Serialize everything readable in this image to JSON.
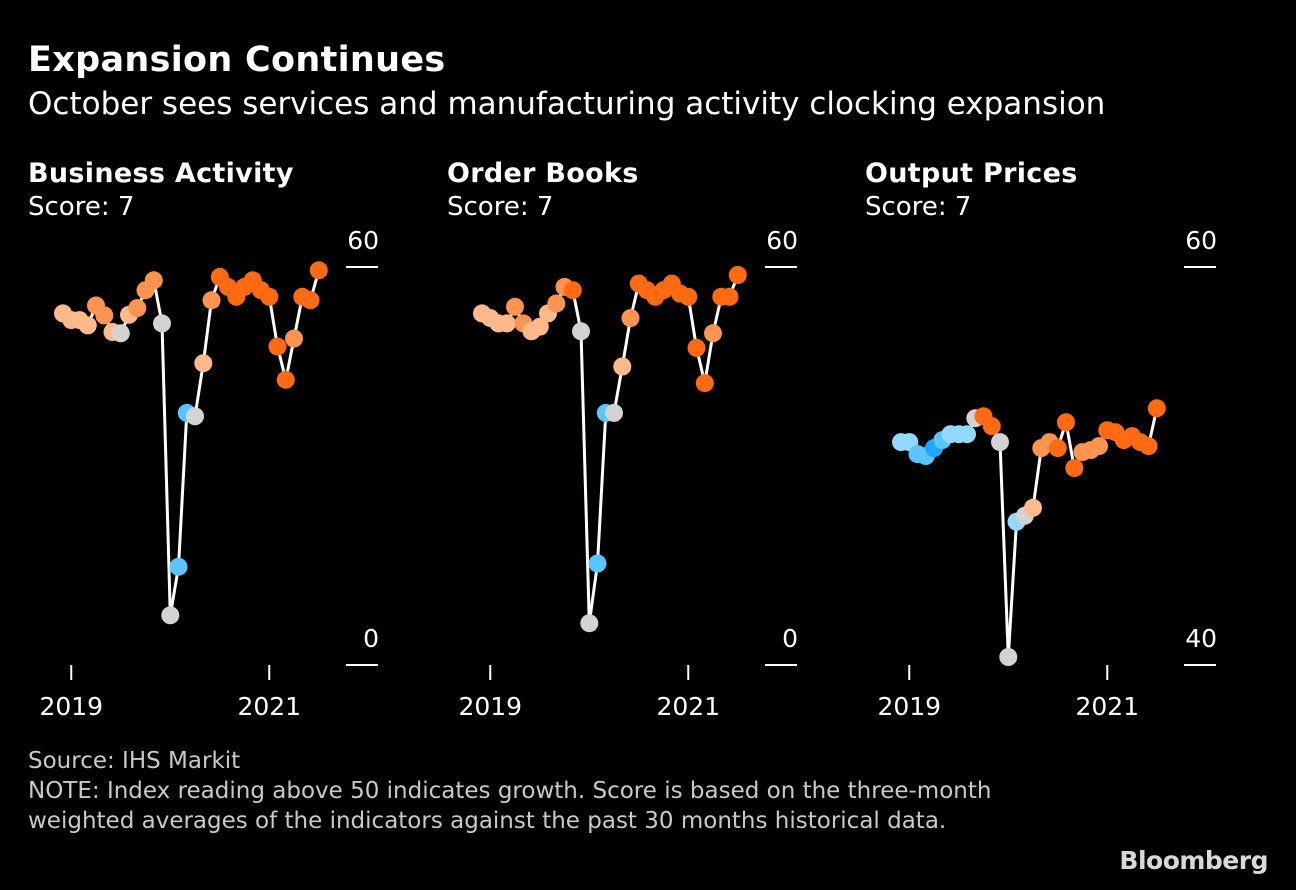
{
  "header": {
    "title": "Expansion Continues",
    "subtitle": "October sees services and manufacturing activity clocking expansion"
  },
  "footer": {
    "source": "Source: IHS Markit",
    "note": "NOTE: Index reading above 50 indicates growth. Score is based on the three-month weighted averages of the indicators against the past 30 months historical data."
  },
  "brand": "Bloomberg",
  "colors": {
    "background": "#000000",
    "line": "#ffffff",
    "neutral": "#d3d3d3",
    "orange_dark": "#ff6a13",
    "orange_mid": "#ff9350",
    "orange_light": "#ffb98a",
    "blue_dark": "#1fa6ff",
    "blue_mid": "#59c5fb",
    "blue_light": "#92dafc"
  },
  "panels": [
    {
      "title": "Business Activity",
      "score_label": "Score: 7"
    },
    {
      "title": "Order Books",
      "score_label": "Score: 7"
    },
    {
      "title": "Output Prices",
      "score_label": "Score: 7"
    }
  ],
  "chart_data": [
    {
      "type": "line",
      "title": "Business Activity",
      "subtitle": "Score: 7",
      "x_tick_labels": [
        "2019",
        "2021"
      ],
      "y_tick_labels": [
        "60",
        "0"
      ],
      "ylim": [
        0,
        60
      ],
      "xlim": [
        "2018-12",
        "2021-10"
      ],
      "grid": false,
      "legend": "none",
      "points": [
        {
          "x": "2018-12",
          "y": 53.0,
          "color": "orange_light"
        },
        {
          "x": "2019-01",
          "y": 52.0,
          "color": "orange_light"
        },
        {
          "x": "2019-02",
          "y": 52.0,
          "color": "orange_light"
        },
        {
          "x": "2019-03",
          "y": 51.2,
          "color": "orange_light"
        },
        {
          "x": "2019-04",
          "y": 54.2,
          "color": "orange_mid"
        },
        {
          "x": "2019-05",
          "y": 52.7,
          "color": "orange_mid"
        },
        {
          "x": "2019-06",
          "y": 50.2,
          "color": "orange_light"
        },
        {
          "x": "2019-07",
          "y": 50.0,
          "color": "neutral"
        },
        {
          "x": "2019-08",
          "y": 52.8,
          "color": "orange_light"
        },
        {
          "x": "2019-09",
          "y": 53.8,
          "color": "orange_mid"
        },
        {
          "x": "2019-10",
          "y": 56.5,
          "color": "orange_mid"
        },
        {
          "x": "2019-11",
          "y": 58.0,
          "color": "orange_mid"
        },
        {
          "x": "2019-12",
          "y": 51.5,
          "color": "neutral"
        },
        {
          "x": "2020-01",
          "y": 7.5,
          "color": "neutral"
        },
        {
          "x": "2020-02",
          "y": 14.8,
          "color": "blue_mid"
        },
        {
          "x": "2020-03",
          "y": 38.0,
          "color": "blue_mid"
        },
        {
          "x": "2020-04",
          "y": 37.5,
          "color": "neutral"
        },
        {
          "x": "2020-05",
          "y": 45.5,
          "color": "orange_light"
        },
        {
          "x": "2020-06",
          "y": 55.0,
          "color": "orange_mid"
        },
        {
          "x": "2020-07",
          "y": 58.5,
          "color": "orange_dark"
        },
        {
          "x": "2020-08",
          "y": 57.0,
          "color": "orange_dark"
        },
        {
          "x": "2020-09",
          "y": 55.5,
          "color": "orange_dark"
        },
        {
          "x": "2020-10",
          "y": 57.0,
          "color": "orange_dark"
        },
        {
          "x": "2020-11",
          "y": 58.0,
          "color": "orange_dark"
        },
        {
          "x": "2020-12",
          "y": 56.5,
          "color": "orange_dark"
        },
        {
          "x": "2021-01",
          "y": 55.5,
          "color": "orange_dark"
        },
        {
          "x": "2021-02",
          "y": 48.0,
          "color": "orange_dark"
        },
        {
          "x": "2021-03",
          "y": 43.0,
          "color": "orange_dark"
        },
        {
          "x": "2021-04",
          "y": 49.2,
          "color": "orange_mid"
        },
        {
          "x": "2021-05",
          "y": 55.5,
          "color": "orange_dark"
        },
        {
          "x": "2021-06",
          "y": 55.0,
          "color": "orange_dark"
        },
        {
          "x": "2021-07",
          "y": 59.5,
          "color": "orange_dark"
        }
      ]
    },
    {
      "type": "line",
      "title": "Order Books",
      "subtitle": "Score: 7",
      "x_tick_labels": [
        "2019",
        "2021"
      ],
      "y_tick_labels": [
        "60",
        "0"
      ],
      "ylim": [
        0,
        60
      ],
      "xlim": [
        "2018-12",
        "2021-10"
      ],
      "grid": false,
      "legend": "none",
      "points": [
        {
          "x": "2018-12",
          "y": 53.0,
          "color": "orange_light"
        },
        {
          "x": "2019-01",
          "y": 52.3,
          "color": "orange_light"
        },
        {
          "x": "2019-02",
          "y": 51.5,
          "color": "orange_light"
        },
        {
          "x": "2019-03",
          "y": 51.5,
          "color": "orange_light"
        },
        {
          "x": "2019-04",
          "y": 54.0,
          "color": "orange_mid"
        },
        {
          "x": "2019-05",
          "y": 51.5,
          "color": "orange_mid"
        },
        {
          "x": "2019-06",
          "y": 50.3,
          "color": "orange_light"
        },
        {
          "x": "2019-07",
          "y": 51.0,
          "color": "orange_light"
        },
        {
          "x": "2019-08",
          "y": 53.0,
          "color": "orange_light"
        },
        {
          "x": "2019-09",
          "y": 54.5,
          "color": "orange_mid"
        },
        {
          "x": "2019-10",
          "y": 57.0,
          "color": "orange_mid"
        },
        {
          "x": "2019-11",
          "y": 56.5,
          "color": "orange_dark"
        },
        {
          "x": "2019-12",
          "y": 50.3,
          "color": "neutral"
        },
        {
          "x": "2020-01",
          "y": 6.3,
          "color": "neutral"
        },
        {
          "x": "2020-02",
          "y": 15.3,
          "color": "blue_mid"
        },
        {
          "x": "2020-03",
          "y": 38.0,
          "color": "blue_mid"
        },
        {
          "x": "2020-04",
          "y": 38.0,
          "color": "neutral"
        },
        {
          "x": "2020-05",
          "y": 45.0,
          "color": "orange_light"
        },
        {
          "x": "2020-06",
          "y": 52.3,
          "color": "orange_mid"
        },
        {
          "x": "2020-07",
          "y": 57.5,
          "color": "orange_dark"
        },
        {
          "x": "2020-08",
          "y": 56.5,
          "color": "orange_dark"
        },
        {
          "x": "2020-09",
          "y": 55.5,
          "color": "orange_dark"
        },
        {
          "x": "2020-10",
          "y": 56.5,
          "color": "orange_dark"
        },
        {
          "x": "2020-11",
          "y": 57.5,
          "color": "orange_dark"
        },
        {
          "x": "2020-12",
          "y": 56.0,
          "color": "orange_dark"
        },
        {
          "x": "2021-01",
          "y": 55.5,
          "color": "orange_dark"
        },
        {
          "x": "2021-02",
          "y": 47.8,
          "color": "orange_dark"
        },
        {
          "x": "2021-03",
          "y": 42.5,
          "color": "orange_dark"
        },
        {
          "x": "2021-04",
          "y": 50.0,
          "color": "orange_mid"
        },
        {
          "x": "2021-05",
          "y": 55.5,
          "color": "orange_dark"
        },
        {
          "x": "2021-06",
          "y": 55.5,
          "color": "orange_dark"
        },
        {
          "x": "2021-07",
          "y": 58.8,
          "color": "orange_dark"
        }
      ]
    },
    {
      "type": "line",
      "title": "Output Prices",
      "subtitle": "Score: 7",
      "x_tick_labels": [
        "2019",
        "2021"
      ],
      "y_tick_labels": [
        "60",
        "40"
      ],
      "ylim": [
        40,
        60
      ],
      "xlim": [
        "2018-12",
        "2021-10"
      ],
      "grid": false,
      "legend": "none",
      "points": [
        {
          "x": "2018-12",
          "y": 51.2,
          "color": "blue_light"
        },
        {
          "x": "2019-01",
          "y": 51.2,
          "color": "blue_light"
        },
        {
          "x": "2019-02",
          "y": 50.6,
          "color": "blue_mid"
        },
        {
          "x": "2019-03",
          "y": 50.5,
          "color": "blue_mid"
        },
        {
          "x": "2019-04",
          "y": 50.9,
          "color": "blue_dark"
        },
        {
          "x": "2019-05",
          "y": 51.3,
          "color": "blue_mid"
        },
        {
          "x": "2019-06",
          "y": 51.6,
          "color": "blue_light"
        },
        {
          "x": "2019-07",
          "y": 51.6,
          "color": "blue_light"
        },
        {
          "x": "2019-08",
          "y": 51.6,
          "color": "blue_light"
        },
        {
          "x": "2019-09",
          "y": 52.4,
          "color": "neutral"
        },
        {
          "x": "2019-10",
          "y": 52.5,
          "color": "orange_dark"
        },
        {
          "x": "2019-11",
          "y": 52.0,
          "color": "orange_dark"
        },
        {
          "x": "2019-12",
          "y": 51.2,
          "color": "neutral"
        },
        {
          "x": "2020-01",
          "y": 40.4,
          "color": "neutral"
        },
        {
          "x": "2020-02",
          "y": 47.2,
          "color": "blue_light"
        },
        {
          "x": "2020-03",
          "y": 47.5,
          "color": "neutral"
        },
        {
          "x": "2020-04",
          "y": 47.9,
          "color": "orange_light"
        },
        {
          "x": "2020-05",
          "y": 50.9,
          "color": "orange_mid"
        },
        {
          "x": "2020-06",
          "y": 51.2,
          "color": "orange_mid"
        },
        {
          "x": "2020-07",
          "y": 50.9,
          "color": "orange_dark"
        },
        {
          "x": "2020-08",
          "y": 52.2,
          "color": "orange_dark"
        },
        {
          "x": "2020-09",
          "y": 49.9,
          "color": "orange_dark"
        },
        {
          "x": "2020-10",
          "y": 50.7,
          "color": "orange_mid"
        },
        {
          "x": "2020-11",
          "y": 50.8,
          "color": "orange_mid"
        },
        {
          "x": "2020-12",
          "y": 51.0,
          "color": "orange_mid"
        },
        {
          "x": "2021-01",
          "y": 51.8,
          "color": "orange_dark"
        },
        {
          "x": "2021-02",
          "y": 51.7,
          "color": "orange_dark"
        },
        {
          "x": "2021-03",
          "y": 51.3,
          "color": "orange_dark"
        },
        {
          "x": "2021-04",
          "y": 51.5,
          "color": "orange_dark"
        },
        {
          "x": "2021-05",
          "y": 51.2,
          "color": "orange_dark"
        },
        {
          "x": "2021-06",
          "y": 51.0,
          "color": "orange_dark"
        },
        {
          "x": "2021-07",
          "y": 52.9,
          "color": "orange_dark"
        }
      ]
    }
  ]
}
